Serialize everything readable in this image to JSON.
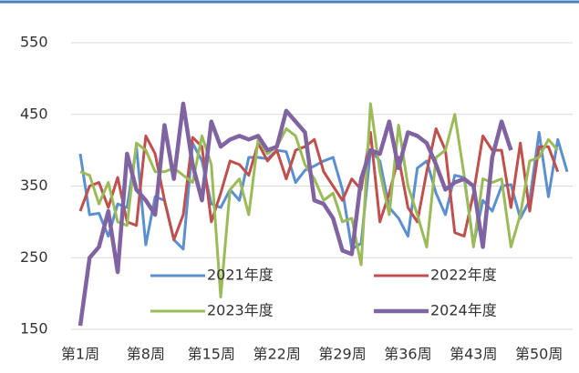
{
  "chart_data": {
    "type": "line",
    "categories": [
      "第1周",
      null,
      null,
      null,
      null,
      null,
      null,
      "第8周",
      null,
      null,
      null,
      null,
      null,
      null,
      "第15周",
      null,
      null,
      null,
      null,
      null,
      null,
      "第22周",
      null,
      null,
      null,
      null,
      null,
      null,
      "第29周",
      null,
      null,
      null,
      null,
      null,
      null,
      "第36周",
      null,
      null,
      null,
      null,
      null,
      null,
      "第43周",
      null,
      null,
      null,
      null,
      null,
      null,
      "第50周",
      null,
      null,
      null
    ],
    "series": [
      {
        "name": "2021年度",
        "color": "#5b8fd0",
        "width": 3,
        "values": [
          395,
          310,
          312,
          280,
          325,
          320,
          405,
          268,
          335,
          330,
          275,
          262,
          410,
          385,
          325,
          320,
          345,
          330,
          390,
          390,
          388,
          400,
          398,
          355,
          372,
          378,
          385,
          390,
          345,
          262,
          270,
          400,
          385,
          320,
          305,
          280,
          375,
          385,
          340,
          310,
          365,
          362,
          268,
          330,
          315,
          350,
          352,
          305,
          330,
          425,
          335,
          415,
          370
        ]
      },
      {
        "name": "2022年度",
        "color": "#c0504d",
        "width": 3,
        "values": [
          315,
          350,
          355,
          320,
          362,
          300,
          295,
          420,
          395,
          330,
          275,
          310,
          418,
          405,
          300,
          340,
          385,
          380,
          365,
          410,
          385,
          400,
          360,
          400,
          405,
          415,
          370,
          350,
          330,
          360,
          345,
          425,
          300,
          340,
          390,
          320,
          300,
          370,
          430,
          400,
          285,
          280,
          340,
          420,
          400,
          400,
          320,
          410,
          315,
          405,
          405,
          370,
          null
        ]
      },
      {
        "name": "2023年度",
        "color": "#9bbb59",
        "width": 3,
        "values": [
          370,
          365,
          325,
          355,
          300,
          295,
          410,
          400,
          370,
          370,
          375,
          365,
          355,
          420,
          380,
          195,
          345,
          360,
          310,
          415,
          395,
          405,
          430,
          420,
          380,
          360,
          330,
          340,
          300,
          305,
          240,
          465,
          370,
          310,
          435,
          350,
          310,
          265,
          390,
          400,
          450,
          365,
          265,
          360,
          355,
          360,
          265,
          310,
          385,
          390,
          415,
          400,
          null
        ]
      },
      {
        "name": "2024年度",
        "color": "#8064a2",
        "width": 4.5,
        "values": [
          155,
          250,
          265,
          315,
          230,
          395,
          345,
          330,
          310,
          435,
          360,
          465,
          380,
          330,
          440,
          405,
          415,
          420,
          415,
          420,
          400,
          405,
          455,
          440,
          425,
          330,
          325,
          305,
          260,
          255,
          360,
          400,
          395,
          440,
          375,
          425,
          420,
          410,
          380,
          345,
          355,
          360,
          350,
          265,
          390,
          440,
          400,
          null,
          null,
          null,
          null,
          null,
          null
        ]
      }
    ],
    "ylim": [
      150,
      550
    ],
    "yticks": [
      150,
      250,
      350,
      450,
      550
    ],
    "grid": true,
    "legend": "lower"
  }
}
